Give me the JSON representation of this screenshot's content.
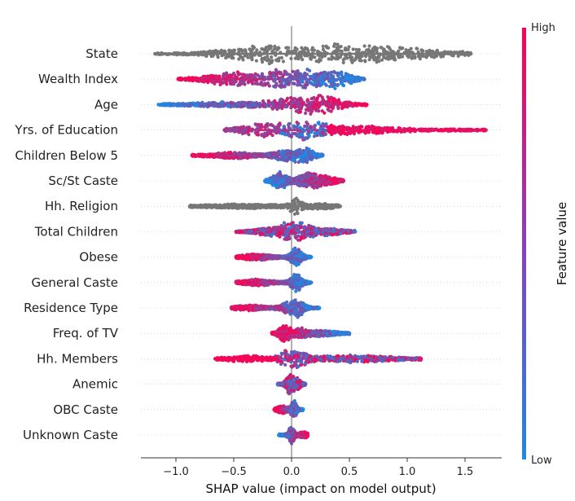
{
  "chart_data": {
    "type": "scatter",
    "subtype": "shap-beeswarm",
    "xlabel": "SHAP value (impact on model output)",
    "xlim": [
      -1.3,
      1.75
    ],
    "xticks": [
      {
        "value": -1.0,
        "label": "−1.0"
      },
      {
        "value": -0.5,
        "label": "−0.5"
      },
      {
        "value": 0.0,
        "label": "0.0"
      },
      {
        "value": 0.5,
        "label": "0.5"
      },
      {
        "value": 1.0,
        "label": "1.0"
      },
      {
        "value": 1.5,
        "label": "1.5"
      }
    ],
    "colorbar": {
      "title": "Feature value",
      "high_label": "High",
      "low_label": "Low",
      "high_color": "#ff0052",
      "low_color": "#1e88e5"
    },
    "features": [
      {
        "name": "State",
        "min": -1.18,
        "max": 1.55,
        "mode": "gray",
        "peaks": [
          [
            -0.5,
            0.18,
            7
          ],
          [
            -0.2,
            0.15,
            12
          ],
          [
            0.35,
            0.25,
            14
          ],
          [
            0.9,
            0.35,
            9
          ]
        ]
      },
      {
        "name": "Wealth Index",
        "min": -0.98,
        "max": 0.63,
        "mode": "hl",
        "peaks": [
          [
            -0.5,
            0.18,
            9
          ],
          [
            -0.1,
            0.12,
            11
          ],
          [
            0.1,
            0.1,
            12
          ],
          [
            0.38,
            0.1,
            12
          ]
        ]
      },
      {
        "name": "Age",
        "min": -1.15,
        "max": 0.65,
        "mode": "lh",
        "peaks": [
          [
            -0.55,
            0.25,
            3
          ],
          [
            -0.1,
            0.15,
            5
          ],
          [
            0.1,
            0.1,
            11
          ],
          [
            0.28,
            0.12,
            13
          ]
        ]
      },
      {
        "name": "Yrs. of Education",
        "min": -0.58,
        "max": 1.68,
        "mode": "edu",
        "peaks": [
          [
            -0.25,
            0.14,
            9
          ],
          [
            0.02,
            0.08,
            8
          ],
          [
            0.18,
            0.08,
            11
          ],
          [
            0.5,
            0.3,
            5
          ]
        ]
      },
      {
        "name": "Children Below 5",
        "min": -0.86,
        "max": 0.27,
        "mode": "hl",
        "peaks": [
          [
            -0.5,
            0.15,
            4
          ],
          [
            -0.07,
            0.07,
            7
          ],
          [
            0.1,
            0.07,
            13
          ]
        ]
      },
      {
        "name": "Sc/St Caste",
        "min": -0.23,
        "max": 0.45,
        "mode": "lh",
        "peaks": [
          [
            -0.1,
            0.05,
            11
          ],
          [
            0.15,
            0.08,
            9
          ],
          [
            0.3,
            0.08,
            4
          ]
        ]
      },
      {
        "name": "Hh. Religion",
        "min": -0.88,
        "max": 0.42,
        "mode": "gray",
        "peaks": [
          [
            -0.4,
            0.25,
            2
          ],
          [
            0.04,
            0.04,
            12
          ],
          [
            0.25,
            0.1,
            3
          ]
        ]
      },
      {
        "name": "Total Children",
        "min": -0.48,
        "max": 0.55,
        "mode": "mix",
        "peaks": [
          [
            -0.15,
            0.12,
            6
          ],
          [
            0.0,
            0.05,
            12
          ],
          [
            0.08,
            0.08,
            9
          ],
          [
            0.3,
            0.12,
            4
          ]
        ]
      },
      {
        "name": "Obese",
        "min": -0.48,
        "max": 0.17,
        "mode": "hl",
        "peaks": [
          [
            -0.3,
            0.1,
            3
          ],
          [
            0.04,
            0.04,
            11
          ]
        ]
      },
      {
        "name": "General Caste",
        "min": -0.48,
        "max": 0.17,
        "mode": "hl",
        "peaks": [
          [
            -0.3,
            0.1,
            3
          ],
          [
            0.04,
            0.04,
            10
          ]
        ]
      },
      {
        "name": "Residence Type",
        "min": -0.52,
        "max": 0.24,
        "mode": "hl",
        "peaks": [
          [
            -0.35,
            0.1,
            3
          ],
          [
            -0.05,
            0.05,
            5
          ],
          [
            0.05,
            0.05,
            12
          ]
        ]
      },
      {
        "name": "Freq. of TV",
        "min": -0.17,
        "max": 0.5,
        "mode": "hl",
        "peaks": [
          [
            -0.06,
            0.04,
            11
          ],
          [
            0.08,
            0.05,
            5
          ],
          [
            0.25,
            0.1,
            3
          ]
        ]
      },
      {
        "name": "Hh. Members",
        "min": -0.66,
        "max": 1.12,
        "mode": "mix2",
        "peaks": [
          [
            -0.4,
            0.15,
            3
          ],
          [
            -0.05,
            0.05,
            9
          ],
          [
            0.05,
            0.06,
            11
          ],
          [
            0.5,
            0.3,
            4
          ]
        ]
      },
      {
        "name": "Anemic",
        "min": -0.12,
        "max": 0.12,
        "mode": "mix",
        "peaks": [
          [
            -0.02,
            0.025,
            9
          ],
          [
            0.04,
            0.03,
            6
          ]
        ]
      },
      {
        "name": "OBC Caste",
        "min": -0.15,
        "max": 0.1,
        "mode": "hl",
        "peaks": [
          [
            -0.08,
            0.04,
            3
          ],
          [
            0.02,
            0.02,
            9
          ]
        ]
      },
      {
        "name": "Unknown Caste",
        "min": -0.11,
        "max": 0.14,
        "mode": "lh",
        "peaks": [
          [
            0.0,
            0.02,
            7
          ],
          [
            0.1,
            0.03,
            2
          ]
        ]
      }
    ]
  }
}
